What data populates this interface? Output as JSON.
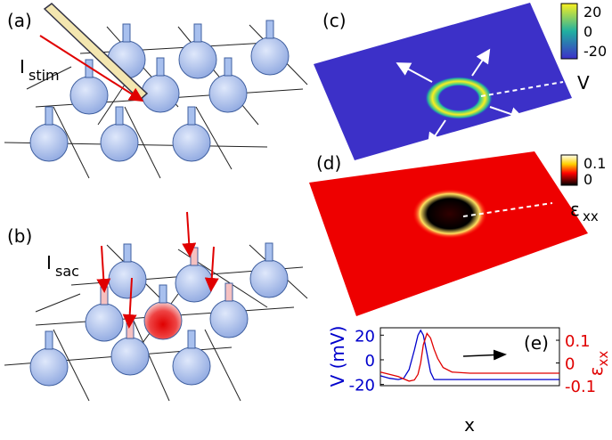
{
  "panel_labels": [
    "(a)",
    "(b)",
    "(c)",
    "(d)"
  ],
  "panel_a": {
    "current_label": "I",
    "current_subscript": "stim"
  },
  "panel_b": {
    "current_label": "I",
    "current_subscript": "sac"
  },
  "panel_c": {
    "colorbar_label": "V",
    "colorbar_ticks": [
      20,
      0,
      -20
    ]
  },
  "panel_d": {
    "colorbar_label": "ε",
    "colorbar_subscript": "xx",
    "colorbar_ticks": [
      0.1,
      0
    ]
  },
  "chart_data": {
    "type": "line",
    "label": "(e)",
    "xlabel": "x",
    "ylabel": "V (mV)",
    "y2label": "ε",
    "y2label_subscript": "xx",
    "x": [
      0,
      0.5,
      1,
      1.3,
      1.6,
      1.9,
      2.1,
      2.25,
      2.4,
      2.6,
      2.8,
      3.0,
      3.2,
      3.5,
      4,
      5,
      6,
      7,
      8,
      9,
      10
    ],
    "xlim": [
      0,
      10
    ],
    "ylim": [
      -21,
      26
    ],
    "yticks": [
      20,
      0,
      -20
    ],
    "y2lim": [
      -0.1,
      0.155
    ],
    "y2ticks": [
      0.1,
      0,
      -0.1
    ],
    "series": [
      {
        "color": "#0000cc",
        "values": [
          -13,
          -15,
          -16,
          -15,
          -8,
          8,
          20,
          24,
          20,
          5,
          -10,
          -16,
          -16,
          -16,
          -16,
          -16,
          -16,
          -16,
          -16,
          -16,
          -16
        ]
      },
      {
        "color": "#e00000",
        "axis": "y2",
        "values": [
          -0.04,
          -0.05,
          -0.06,
          -0.07,
          -0.08,
          -0.075,
          -0.05,
          0.0,
          0.08,
          0.13,
          0.11,
          0.06,
          0.02,
          -0.02,
          -0.04,
          -0.045,
          -0.045,
          -0.045,
          -0.045,
          -0.045,
          -0.045
        ]
      }
    ]
  }
}
